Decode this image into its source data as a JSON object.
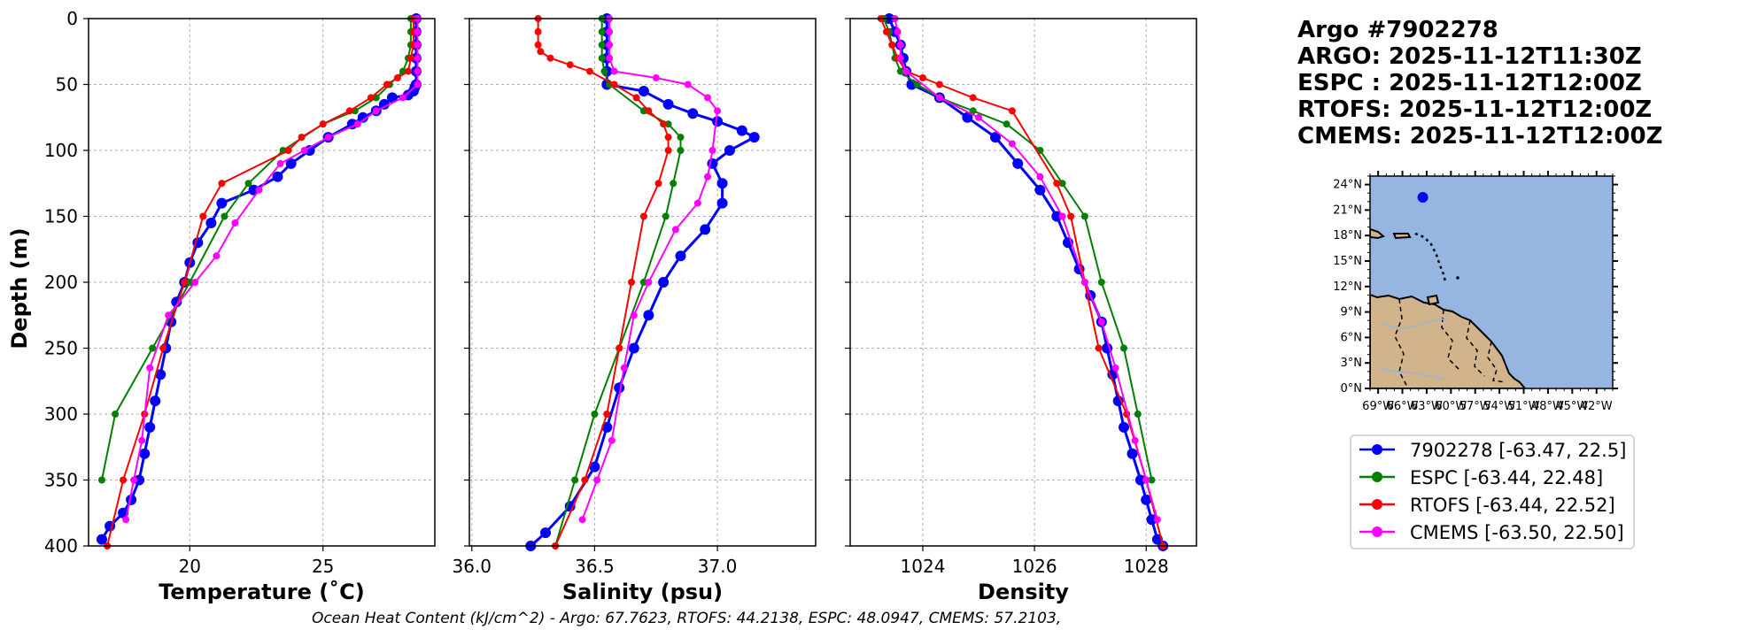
{
  "header": {
    "lines": [
      "Argo #7902278",
      "ARGO: 2025-11-12T11:30Z",
      "ESPC : 2025-11-12T12:00Z",
      "RTOFS: 2025-11-12T12:00Z",
      "CMEMS: 2025-11-12T12:00Z"
    ]
  },
  "colors": {
    "argo": "#0000ff",
    "espc": "#008000",
    "rtofs": "#ff0000",
    "cmems": "#ff00ff",
    "ocean": "#96b5e0",
    "land": "#d2b48c",
    "river": "#9bb5d8"
  },
  "footer": {
    "text": "Ocean Heat Content (kJ/cm^2) - Argo: 67.7623,  RTOFS: 44.2138,  ESPC: 48.0947,  CMEMS: 57.2103,"
  },
  "legend": {
    "items": [
      {
        "key": "argo",
        "label": "7902278 [-63.47, 22.5]"
      },
      {
        "key": "espc",
        "label": "ESPC [-63.44, 22.48]"
      },
      {
        "key": "rtofs",
        "label": "RTOFS [-63.44, 22.52]"
      },
      {
        "key": "cmems",
        "label": "CMEMS [-63.50, 22.50]"
      }
    ]
  },
  "map": {
    "lat_ticks": [
      "0°N",
      "3°N",
      "6°N",
      "9°N",
      "12°N",
      "15°N",
      "18°N",
      "21°N",
      "24°N"
    ],
    "lon_ticks": [
      "69°W",
      "66°W",
      "63°W",
      "60°W",
      "57°W",
      "54°W",
      "51°W",
      "48°W",
      "45°W",
      "42°W"
    ],
    "extent": {
      "lon_min": -70,
      "lon_max": -40,
      "lat_min": 0,
      "lat_max": 25
    },
    "float_position": {
      "lon": -63.47,
      "lat": 22.5
    }
  },
  "chart_data": [
    {
      "type": "line",
      "title": "",
      "xlabel": "Temperature (˚C)",
      "ylabel": "Depth (m)",
      "xlim": [
        16.2,
        29.2
      ],
      "ylim": [
        400,
        0
      ],
      "xticks": [
        20,
        25
      ],
      "yticks": [
        0,
        50,
        100,
        150,
        200,
        250,
        300,
        350,
        400
      ],
      "grid": true,
      "series": [
        {
          "name": "7902278",
          "key": "argo",
          "marker_size": 6,
          "x": [
            28.5,
            28.5,
            28.5,
            28.5,
            28.5,
            28.5,
            28.45,
            28.4,
            28.2,
            27.6,
            27.3,
            27.0,
            26.5,
            26.1,
            25.2,
            24.5,
            23.8,
            23.3,
            22.4,
            21.2,
            20.8,
            20.3,
            20.0,
            19.8,
            19.5,
            19.3,
            19.1,
            18.9,
            18.7,
            18.5,
            18.3,
            18.1,
            17.8,
            17.5,
            17.0,
            16.7
          ],
          "y": [
            0,
            10,
            20,
            30,
            40,
            50,
            52,
            55,
            58,
            60,
            65,
            70,
            75,
            80,
            90,
            100,
            110,
            120,
            130,
            140,
            155,
            170,
            185,
            200,
            215,
            230,
            250,
            270,
            290,
            310,
            330,
            350,
            365,
            375,
            385,
            395
          ]
        },
        {
          "name": "ESPC",
          "key": "espc",
          "marker_size": 4,
          "x": [
            28.3,
            28.3,
            28.3,
            28.2,
            28.0,
            27.5,
            27.0,
            26.2,
            25.0,
            23.5,
            22.2,
            21.3,
            20.0,
            18.6,
            17.2,
            16.7
          ],
          "y": [
            0,
            10,
            20,
            30,
            40,
            50,
            60,
            70,
            80,
            100,
            125,
            150,
            200,
            250,
            300,
            350
          ]
        },
        {
          "name": "RTOFS",
          "key": "rtofs",
          "marker_size": 4,
          "x": [
            28.4,
            28.4,
            28.4,
            28.3,
            28.2,
            27.8,
            27.4,
            26.8,
            26.0,
            25.0,
            24.2,
            23.7,
            21.2,
            20.5,
            19.8,
            19.0,
            18.3,
            17.5,
            16.9
          ],
          "y": [
            0,
            10,
            20,
            30,
            40,
            45,
            50,
            60,
            70,
            80,
            90,
            100,
            125,
            150,
            200,
            250,
            300,
            350,
            400
          ]
        },
        {
          "name": "CMEMS",
          "key": "cmems",
          "marker_size": 4,
          "x": [
            28.55,
            28.55,
            28.55,
            28.55,
            28.55,
            28.55,
            28.0,
            27.0,
            26.3,
            25.2,
            24.3,
            23.4,
            22.6,
            21.7,
            21.0,
            20.2,
            19.2,
            18.5,
            18.2,
            17.9,
            17.6
          ],
          "y": [
            0,
            10,
            20,
            30,
            40,
            50,
            60,
            70,
            80,
            90,
            100,
            110,
            130,
            155,
            180,
            200,
            225,
            265,
            320,
            350,
            380
          ]
        }
      ]
    },
    {
      "type": "line",
      "title": "",
      "xlabel": "Salinity (psu)",
      "ylabel": "",
      "xlim": [
        35.99,
        37.4
      ],
      "ylim": [
        400,
        0
      ],
      "xticks": [
        36.0,
        36.5,
        37.0
      ],
      "xtick_labels": [
        "36.0",
        "36.5",
        "37.0"
      ],
      "yticks": [
        0,
        50,
        100,
        150,
        200,
        250,
        300,
        350,
        400
      ],
      "grid": true,
      "series": [
        {
          "name": "7902278",
          "key": "argo",
          "marker_size": 6,
          "x": [
            36.55,
            36.55,
            36.55,
            36.55,
            36.55,
            36.55,
            36.7,
            36.8,
            36.9,
            37.0,
            37.1,
            37.15,
            37.05,
            36.98,
            37.02,
            37.02,
            36.95,
            36.85,
            36.78,
            36.72,
            36.66,
            36.6,
            36.55,
            36.5,
            36.4,
            36.3,
            36.24
          ],
          "y": [
            0,
            10,
            20,
            30,
            40,
            50,
            55,
            65,
            72,
            78,
            85,
            90,
            100,
            110,
            125,
            140,
            160,
            180,
            200,
            225,
            250,
            280,
            310,
            340,
            370,
            390,
            400
          ]
        },
        {
          "name": "ESPC",
          "key": "espc",
          "marker_size": 4,
          "x": [
            36.53,
            36.53,
            36.53,
            36.53,
            36.54,
            36.56,
            36.7,
            36.8,
            36.85,
            36.85,
            36.82,
            36.79,
            36.7,
            36.6,
            36.5,
            36.42,
            36.34
          ],
          "y": [
            0,
            10,
            20,
            30,
            40,
            50,
            70,
            80,
            90,
            100,
            125,
            150,
            200,
            250,
            300,
            350,
            400
          ]
        },
        {
          "name": "RTOFS",
          "key": "rtofs",
          "marker_size": 4,
          "x": [
            36.27,
            36.27,
            36.27,
            36.28,
            36.32,
            36.4,
            36.48,
            36.58,
            36.67,
            36.72,
            36.78,
            36.8,
            36.8,
            36.76,
            36.7,
            36.65,
            36.6,
            36.55,
            36.46,
            36.34
          ],
          "y": [
            0,
            10,
            20,
            25,
            30,
            35,
            40,
            50,
            60,
            70,
            80,
            90,
            100,
            125,
            150,
            200,
            250,
            300,
            350,
            400
          ]
        },
        {
          "name": "CMEMS",
          "key": "cmems",
          "marker_size": 4,
          "x": [
            36.56,
            36.56,
            36.56,
            36.56,
            36.58,
            36.75,
            36.88,
            36.96,
            37.0,
            36.98,
            36.96,
            36.92,
            36.83,
            36.72,
            36.66,
            36.62,
            36.57,
            36.51,
            36.45
          ],
          "y": [
            0,
            10,
            20,
            30,
            40,
            45,
            50,
            60,
            70,
            100,
            120,
            140,
            160,
            200,
            225,
            265,
            320,
            350,
            380
          ]
        }
      ]
    },
    {
      "type": "line",
      "title": "",
      "xlabel": "Density",
      "ylabel": "",
      "xlim": [
        1022.7,
        1028.9
      ],
      "ylim": [
        400,
        0
      ],
      "xticks": [
        1024,
        1026,
        1028
      ],
      "yticks": [
        0,
        50,
        100,
        150,
        200,
        250,
        300,
        350,
        400
      ],
      "grid": true,
      "series": [
        {
          "name": "7902278",
          "key": "argo",
          "marker_size": 6,
          "x": [
            1023.4,
            1023.5,
            1023.6,
            1023.65,
            1023.7,
            1023.8,
            1024.3,
            1024.8,
            1025.3,
            1025.7,
            1026.1,
            1026.4,
            1026.6,
            1026.8,
            1027.0,
            1027.2,
            1027.3,
            1027.4,
            1027.5,
            1027.6,
            1027.75,
            1027.9,
            1028.0,
            1028.1,
            1028.2,
            1028.3
          ],
          "y": [
            0,
            10,
            20,
            30,
            40,
            50,
            60,
            75,
            90,
            110,
            130,
            150,
            170,
            190,
            210,
            230,
            250,
            270,
            290,
            310,
            330,
            350,
            365,
            380,
            395,
            400
          ]
        },
        {
          "name": "ESPC",
          "key": "espc",
          "marker_size": 4,
          "x": [
            1023.3,
            1023.4,
            1023.45,
            1023.5,
            1023.6,
            1023.9,
            1024.3,
            1024.9,
            1025.5,
            1026.1,
            1026.5,
            1026.9,
            1027.2,
            1027.6,
            1027.85,
            1028.1
          ],
          "y": [
            0,
            10,
            20,
            30,
            40,
            50,
            60,
            70,
            80,
            100,
            125,
            150,
            200,
            250,
            300,
            350
          ]
        },
        {
          "name": "RTOFS",
          "key": "rtofs",
          "marker_size": 4,
          "x": [
            1023.25,
            1023.35,
            1023.45,
            1023.55,
            1023.7,
            1024.0,
            1024.3,
            1024.9,
            1025.6,
            1026.4,
            1026.65,
            1026.9,
            1027.15,
            1027.65,
            1028.0,
            1028.3
          ],
          "y": [
            0,
            10,
            20,
            30,
            40,
            45,
            50,
            60,
            70,
            125,
            150,
            200,
            250,
            300,
            350,
            400
          ]
        },
        {
          "name": "CMEMS",
          "key": "cmems",
          "marker_size": 4,
          "x": [
            1023.5,
            1023.55,
            1023.6,
            1023.6,
            1023.7,
            1024.3,
            1025.0,
            1025.6,
            1026.1,
            1026.5,
            1026.9,
            1027.2,
            1027.45,
            1027.8,
            1028.0,
            1028.2
          ],
          "y": [
            0,
            10,
            20,
            30,
            40,
            60,
            75,
            95,
            120,
            150,
            200,
            230,
            265,
            320,
            350,
            380
          ]
        }
      ]
    }
  ]
}
